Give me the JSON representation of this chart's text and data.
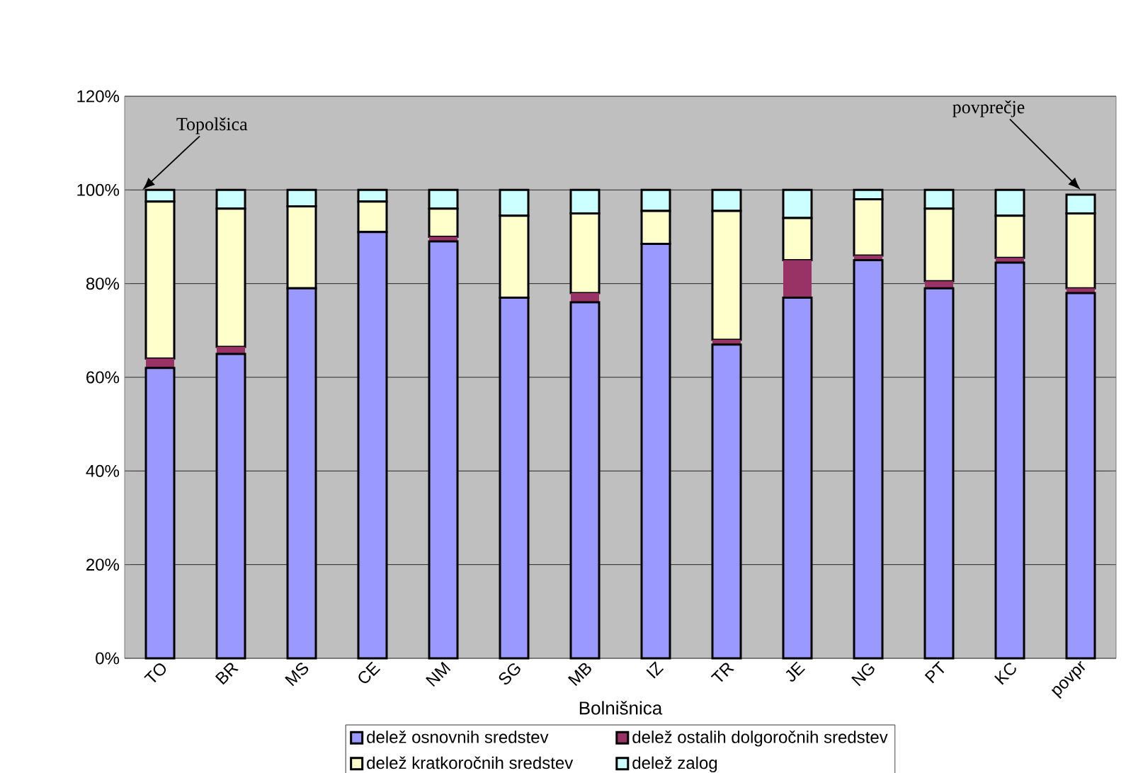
{
  "chart_data": {
    "type": "bar",
    "stacked": true,
    "xlabel": "Bolnišnica",
    "categories": [
      "TO",
      "BR",
      "MS",
      "CE",
      "NM",
      "SG",
      "MB",
      "IZ",
      "TR",
      "JE",
      "NG",
      "PT",
      "KC",
      "povpr"
    ],
    "series": [
      {
        "name": "delež osnovnih sredstev",
        "color": "#9999ff",
        "values": [
          62,
          65,
          79,
          91,
          89,
          77,
          76,
          88.5,
          67,
          77,
          85,
          79,
          84.5,
          78
        ]
      },
      {
        "name": "delež ostalih dolgoročnih sredstev",
        "color": "#993366",
        "values": [
          2,
          1.5,
          null,
          null,
          1,
          null,
          2,
          null,
          1,
          8,
          1,
          1.5,
          1,
          1
        ]
      },
      {
        "name": "delež kratkoročnih sredstev",
        "color": "#ffffcc",
        "values": [
          33.5,
          29.5,
          17.5,
          6.5,
          6,
          17.5,
          17,
          7,
          27.5,
          9,
          12,
          15.5,
          9,
          16
        ]
      },
      {
        "name": "delež zalog",
        "color": "#ccffff",
        "values": [
          2.5,
          4,
          3.5,
          2.5,
          4,
          5.5,
          5,
          4.5,
          4.5,
          6,
          2,
          4,
          5.5,
          4
        ]
      }
    ],
    "ylim": [
      0,
      120
    ],
    "yticks": [
      {
        "value": 0,
        "label": "0%"
      },
      {
        "value": 20,
        "label": "20%"
      },
      {
        "value": 40,
        "label": "40%"
      },
      {
        "value": 60,
        "label": "60%"
      },
      {
        "value": 80,
        "label": "80%"
      },
      {
        "value": 100,
        "label": "100%"
      },
      {
        "value": 120,
        "label": "120%"
      }
    ],
    "grid": "y",
    "legend": "bottom",
    "annotations": [
      {
        "text": "Topolšica",
        "x": "TO",
        "y": 100
      },
      {
        "text": "povprečje",
        "x": "povpr",
        "y": 100
      }
    ]
  }
}
